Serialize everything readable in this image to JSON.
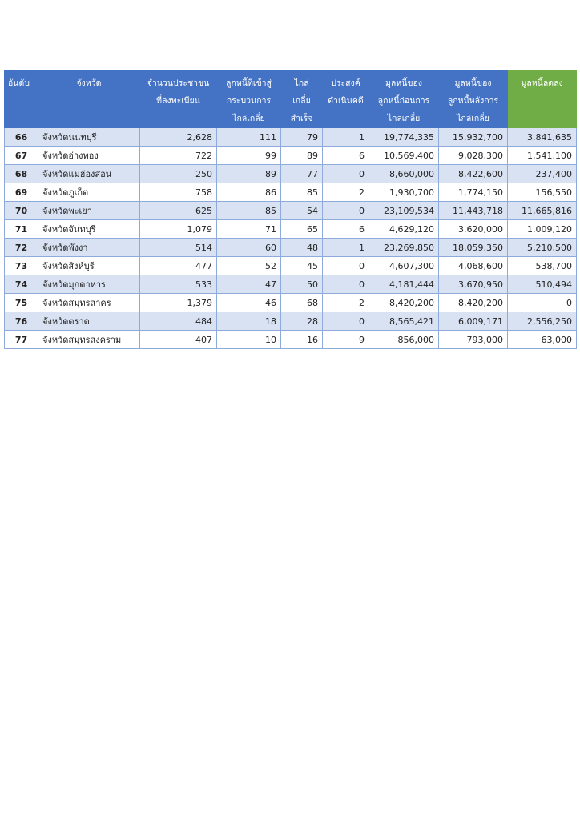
{
  "headers": [
    [
      "อันดับ"
    ],
    [
      "จังหวัด"
    ],
    [
      "จำนวนประชาชน",
      "ที่ลงทะเบียน"
    ],
    [
      "ลูกหนี้ที่เข้าสู่",
      "กระบวนการ",
      "ไกล่เกลี่ย"
    ],
    [
      "ไกล่",
      "เกลี่ย",
      "สำเร็จ"
    ],
    [
      "ประสงค์",
      "ดำเนินคดี"
    ],
    [
      "มูลหนี้ของ",
      "ลูกหนี้ก่อนการ",
      "ไกล่เกลี่ย"
    ],
    [
      "มูลหนี้ของ",
      "ลูกหนี้หลังการ",
      "ไกล่เกลี่ย"
    ],
    [
      "มูลหนี้ลดลง"
    ]
  ],
  "rows": [
    [
      "66",
      "จังหวัดนนทบุรี",
      "2,628",
      "111",
      "79",
      "1",
      "19,774,335",
      "15,932,700",
      "3,841,635"
    ],
    [
      "67",
      "จังหวัดอ่างทอง",
      "722",
      "99",
      "89",
      "6",
      "10,569,400",
      "9,028,300",
      "1,541,100"
    ],
    [
      "68",
      "จังหวัดแม่ฮ่องสอน",
      "250",
      "89",
      "77",
      "0",
      "8,660,000",
      "8,422,600",
      "237,400"
    ],
    [
      "69",
      "จังหวัดภูเก็ต",
      "758",
      "86",
      "85",
      "2",
      "1,930,700",
      "1,774,150",
      "156,550"
    ],
    [
      "70",
      "จังหวัดพะเยา",
      "625",
      "85",
      "54",
      "0",
      "23,109,534",
      "11,443,718",
      "11,665,816"
    ],
    [
      "71",
      "จังหวัดจันทบุรี",
      "1,079",
      "71",
      "65",
      "6",
      "4,629,120",
      "3,620,000",
      "1,009,120"
    ],
    [
      "72",
      "จังหวัดพังงา",
      "514",
      "60",
      "48",
      "1",
      "23,269,850",
      "18,059,350",
      "5,210,500"
    ],
    [
      "73",
      "จังหวัดสิงห์บุรี",
      "477",
      "52",
      "45",
      "0",
      "4,607,300",
      "4,068,600",
      "538,700"
    ],
    [
      "74",
      "จังหวัดมุกดาหาร",
      "533",
      "47",
      "50",
      "0",
      "4,181,444",
      "3,670,950",
      "510,494"
    ],
    [
      "75",
      "จังหวัดสมุทรสาคร",
      "1,379",
      "46",
      "68",
      "2",
      "8,420,200",
      "8,420,200",
      "0"
    ],
    [
      "76",
      "จังหวัดตราด",
      "484",
      "18",
      "28",
      "0",
      "8,565,421",
      "6,009,171",
      "2,556,250"
    ],
    [
      "77",
      "จังหวัดสมุทรสงคราม",
      "407",
      "10",
      "16",
      "9",
      "856,000",
      "793,000",
      "63,000"
    ]
  ],
  "colors": {
    "header_bg": "#4472c4",
    "header_last_bg": "#70ad47",
    "row_alt_bg": "#d9e2f3",
    "border": "#8eaadb"
  }
}
